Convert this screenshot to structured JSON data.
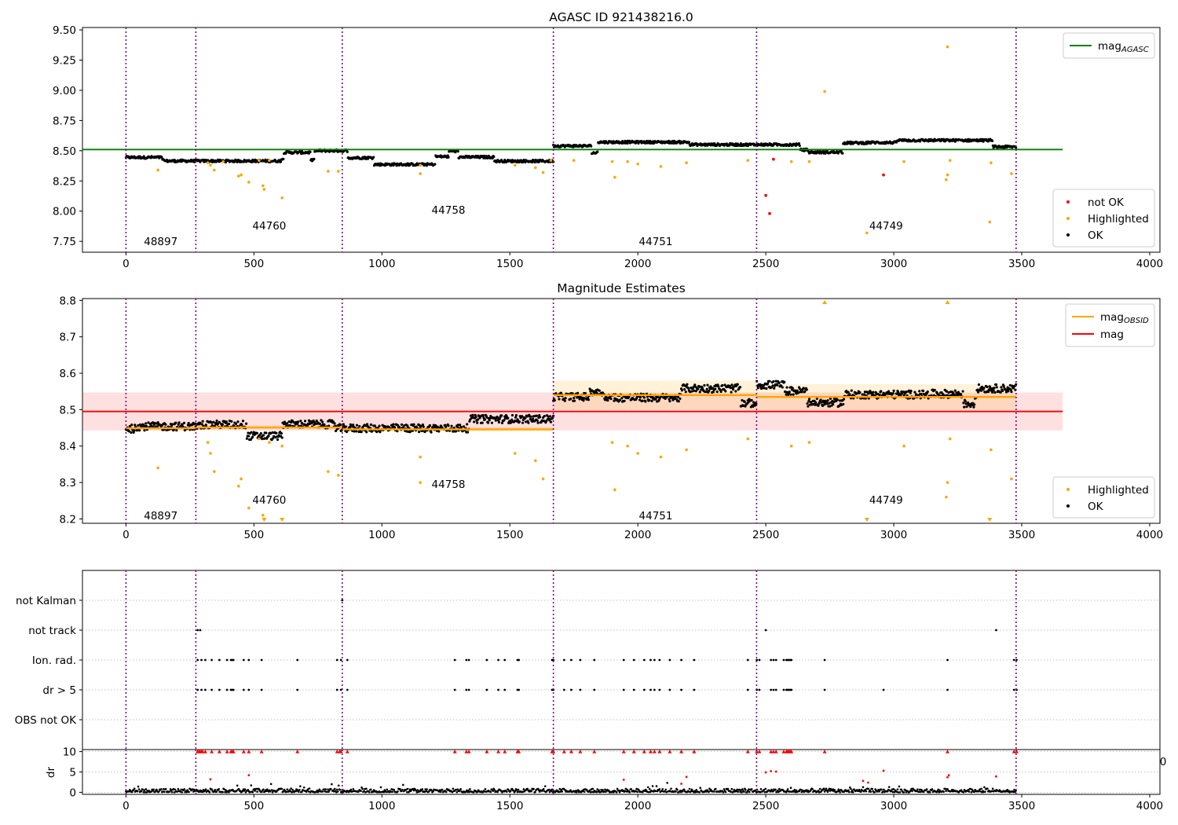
{
  "chart_data": [
    {
      "type": "scatter",
      "title": "AGASC ID 921438216.0",
      "xlim": [
        -170,
        4040
      ],
      "ylim": [
        7.66,
        9.52
      ],
      "xticks": [
        0,
        500,
        1000,
        1500,
        2000,
        2500,
        3000,
        3500,
        4000
      ],
      "xtick_labels": [
        "0",
        "500",
        "1000",
        "1500",
        "2000",
        "2500",
        "3000",
        "3500",
        "4000"
      ],
      "yticks": [
        7.75,
        8.0,
        8.25,
        8.5,
        8.75,
        9.0,
        9.25,
        9.5
      ],
      "ytick_labels": [
        "7.75",
        "8.00",
        "8.25",
        "8.50",
        "8.75",
        "9.00",
        "9.25",
        "9.50"
      ],
      "legend_upper": [
        {
          "label": "mag",
          "sub": "AGASC",
          "color": "#008000",
          "kind": "line"
        }
      ],
      "legend_lower": [
        {
          "label": "not OK",
          "color": "#ff0000",
          "kind": "dot"
        },
        {
          "label": "Highlighted",
          "color": "#ffa500",
          "kind": "dot"
        },
        {
          "label": "OK",
          "color": "#000000",
          "kind": "dot"
        }
      ],
      "obsid_boundaries": [
        0,
        273,
        845,
        1670,
        2464,
        3478
      ],
      "obsid_labels": [
        {
          "text": "48897",
          "x": 136,
          "y": 7.75
        },
        {
          "text": "44760",
          "x": 560,
          "y": 7.88
        },
        {
          "text": "44758",
          "x": 1260,
          "y": 8.01
        },
        {
          "text": "44751",
          "x": 2070,
          "y": 7.75
        },
        {
          "text": "44749",
          "x": 2970,
          "y": 7.88
        }
      ],
      "agasc_mag": 8.51,
      "hline_xrange": [
        -170,
        3660
      ],
      "ok_segments": [
        {
          "x": [
            0,
            1670
          ],
          "level": 8.445
        },
        {
          "x": [
            1670,
            3478
          ],
          "level": 8.54
        }
      ],
      "highlighted_points": [
        [
          125,
          8.34
        ],
        [
          320,
          8.4
        ],
        [
          330,
          8.38
        ],
        [
          345,
          8.34
        ],
        [
          380,
          8.41
        ],
        [
          440,
          8.29
        ],
        [
          450,
          8.3
        ],
        [
          480,
          8.24
        ],
        [
          520,
          8.42
        ],
        [
          535,
          8.21
        ],
        [
          540,
          8.18
        ],
        [
          560,
          8.42
        ],
        [
          610,
          8.11
        ],
        [
          790,
          8.33
        ],
        [
          830,
          8.33
        ],
        [
          1150,
          8.31
        ],
        [
          1150,
          8.38
        ],
        [
          1520,
          8.38
        ],
        [
          1600,
          8.36
        ],
        [
          1630,
          8.32
        ],
        [
          1660,
          8.42
        ],
        [
          1750,
          8.42
        ],
        [
          1900,
          8.41
        ],
        [
          1910,
          8.28
        ],
        [
          1960,
          8.41
        ],
        [
          2000,
          8.39
        ],
        [
          2090,
          8.37
        ],
        [
          2190,
          8.4
        ],
        [
          2430,
          8.42
        ],
        [
          2600,
          8.41
        ],
        [
          2670,
          8.41
        ],
        [
          2730,
          8.99
        ],
        [
          2895,
          7.82
        ],
        [
          3040,
          8.41
        ],
        [
          3205,
          8.26
        ],
        [
          3210,
          8.3
        ],
        [
          3210,
          9.36
        ],
        [
          3220,
          8.42
        ],
        [
          3375,
          7.91
        ],
        [
          3380,
          8.4
        ],
        [
          3460,
          8.31
        ]
      ],
      "not_ok_points": [
        [
          2500,
          8.13
        ],
        [
          2515,
          7.98
        ],
        [
          2530,
          8.43
        ],
        [
          2960,
          8.3
        ]
      ]
    },
    {
      "type": "scatter",
      "title": "Magnitude Estimates",
      "xlim": [
        -170,
        4040
      ],
      "ylim": [
        8.188,
        8.805
      ],
      "xticks": [
        0,
        500,
        1000,
        1500,
        2000,
        2500,
        3000,
        3500,
        4000
      ],
      "xtick_labels": [
        "0",
        "500",
        "1000",
        "1500",
        "2000",
        "2500",
        "3000",
        "3500",
        "4000"
      ],
      "yticks": [
        8.2,
        8.3,
        8.4,
        8.5,
        8.6,
        8.7,
        8.8
      ],
      "ytick_labels": [
        "8.2",
        "8.3",
        "8.4",
        "8.5",
        "8.6",
        "8.7",
        "8.8"
      ],
      "legend_upper": [
        {
          "label": "mag",
          "sub": "OBSID",
          "color": "#ffa500",
          "kind": "line"
        },
        {
          "label": "mag",
          "sub": "",
          "color": "#ff0000",
          "kind": "line"
        }
      ],
      "legend_lower": [
        {
          "label": "Highlighted",
          "color": "#ffa500",
          "kind": "dot"
        },
        {
          "label": "OK",
          "color": "#000000",
          "kind": "dot"
        }
      ],
      "mag": 8.495,
      "mag_band": [
        8.443,
        8.547
      ],
      "hline_xrange": [
        -170,
        3660
      ],
      "obsid_mags": [
        {
          "x": [
            0,
            273
          ],
          "mag": 8.449,
          "band": [
            8.443,
            8.455
          ]
        },
        {
          "x": [
            273,
            845
          ],
          "mag": 8.451,
          "band": [
            8.445,
            8.457
          ]
        },
        {
          "x": [
            845,
            1670
          ],
          "mag": 8.446,
          "band": [
            8.44,
            8.452
          ]
        },
        {
          "x": [
            1670,
            2464
          ],
          "mag": 8.54,
          "band": [
            8.5,
            8.58
          ]
        },
        {
          "x": [
            2464,
            3478
          ],
          "mag": 8.535,
          "band": [
            8.5,
            8.57
          ]
        }
      ],
      "obsid_boundaries": [
        0,
        273,
        845,
        1670,
        2464,
        3478
      ],
      "obsid_labels": [
        {
          "text": "48897",
          "x": 136,
          "y": 8.21
        },
        {
          "text": "44760",
          "x": 560,
          "y": 8.253
        },
        {
          "text": "44758",
          "x": 1260,
          "y": 8.296
        },
        {
          "text": "44751",
          "x": 2070,
          "y": 8.21
        },
        {
          "text": "44749",
          "x": 2970,
          "y": 8.253
        }
      ],
      "ok_segments": [
        {
          "x": [
            0,
            1670
          ],
          "level": 8.448
        },
        {
          "x": [
            1670,
            3478
          ],
          "level": 8.535
        }
      ],
      "highlighted_points": [
        [
          125,
          8.34
        ],
        [
          320,
          8.41
        ],
        [
          330,
          8.38
        ],
        [
          345,
          8.33
        ],
        [
          440,
          8.29
        ],
        [
          450,
          8.31
        ],
        [
          480,
          8.23
        ],
        [
          520,
          8.42
        ],
        [
          535,
          8.21
        ],
        [
          540,
          8.2
        ],
        [
          560,
          8.41
        ],
        [
          610,
          8.4
        ],
        [
          790,
          8.33
        ],
        [
          830,
          8.32
        ],
        [
          1150,
          8.3
        ],
        [
          1150,
          8.37
        ],
        [
          1520,
          8.38
        ],
        [
          1600,
          8.36
        ],
        [
          1630,
          8.31
        ],
        [
          1900,
          8.41
        ],
        [
          1910,
          8.28
        ],
        [
          1960,
          8.4
        ],
        [
          2000,
          8.38
        ],
        [
          2090,
          8.37
        ],
        [
          2190,
          8.39
        ],
        [
          2430,
          8.42
        ],
        [
          2600,
          8.4
        ],
        [
          2670,
          8.41
        ],
        [
          3040,
          8.4
        ],
        [
          3205,
          8.26
        ],
        [
          3210,
          8.3
        ],
        [
          3220,
          8.42
        ],
        [
          3380,
          8.39
        ],
        [
          3460,
          8.31
        ]
      ],
      "clipped_up": [
        2730,
        3210
      ],
      "clipped_down": [
        540,
        610,
        2895,
        3375
      ]
    },
    {
      "type": "scatter",
      "title": "",
      "xlim": [
        -170,
        4040
      ],
      "categories": [
        "not Kalman",
        "not track",
        "Ion. rad.",
        "dr > 5",
        "OBS not OK"
      ],
      "obsid_boundaries": [
        0,
        273,
        845,
        1670,
        2464,
        3478
      ],
      "flags": {
        "not Kalman": [
          845
        ],
        "not track": [
          280,
          290,
          2500,
          3400
        ],
        "Ion. rad.": [
          280,
          295,
          310,
          335,
          365,
          395,
          410,
          415,
          420,
          460,
          480,
          530,
          670,
          825,
          840,
          865,
          1285,
          1330,
          1340,
          1410,
          1455,
          1480,
          1530,
          1535,
          1665,
          1670,
          1712,
          1740,
          1775,
          1830,
          1945,
          1985,
          2025,
          2050,
          2065,
          2085,
          2125,
          2170,
          2220,
          2430,
          2465,
          2475,
          2520,
          2530,
          2540,
          2570,
          2580,
          2585,
          2590,
          2595,
          2600,
          2730,
          3210,
          3470,
          3480
        ],
        "dr > 5": [
          280,
          295,
          310,
          335,
          365,
          395,
          410,
          415,
          420,
          460,
          480,
          530,
          670,
          825,
          840,
          865,
          1285,
          1330,
          1340,
          1410,
          1455,
          1480,
          1530,
          1535,
          1665,
          1670,
          1712,
          1740,
          1775,
          1830,
          1945,
          1985,
          2025,
          2050,
          2065,
          2085,
          2125,
          2170,
          2220,
          2430,
          2465,
          2475,
          2520,
          2530,
          2540,
          2570,
          2580,
          2585,
          2590,
          2595,
          2600,
          2730,
          2960,
          3210,
          3470,
          3480
        ],
        "OBS not OK": []
      }
    },
    {
      "type": "scatter",
      "title": "",
      "ylabel": "dr",
      "xlim": [
        -170,
        4040
      ],
      "ylim": [
        -0.5,
        10.5
      ],
      "xticks": [
        0,
        500,
        1000,
        1500,
        2000,
        2500,
        3000,
        3500,
        4000
      ],
      "xtick_labels": [
        "0",
        "500",
        "1000",
        "1500",
        "2000",
        "2500",
        "3000",
        "3500",
        "4000"
      ],
      "yticks": [
        0,
        5,
        10
      ],
      "ytick_labels": [
        "0",
        "5",
        "10"
      ],
      "overlapped_label": "0",
      "obsid_boundaries": [
        0,
        273,
        845,
        1670,
        2464,
        3478
      ],
      "red_clipped_x": [
        280,
        285,
        290,
        295,
        300,
        310,
        335,
        365,
        395,
        410,
        415,
        420,
        460,
        480,
        530,
        670,
        825,
        835,
        840,
        865,
        1285,
        1330,
        1340,
        1410,
        1455,
        1480,
        1530,
        1535,
        1665,
        1670,
        1712,
        1740,
        1775,
        1830,
        1945,
        1985,
        2025,
        2050,
        2065,
        2085,
        2125,
        2170,
        2220,
        2430,
        2465,
        2475,
        2520,
        2530,
        2540,
        2570,
        2580,
        2585,
        2590,
        2595,
        2600,
        2730,
        3210,
        3470,
        3480
      ],
      "red_points": [
        [
          330,
          3.2
        ],
        [
          480,
          4.2
        ],
        [
          1945,
          3.1
        ],
        [
          2170,
          2.1
        ],
        [
          2190,
          3.8
        ],
        [
          2500,
          4.9
        ],
        [
          2520,
          5.2
        ],
        [
          2540,
          5.1
        ],
        [
          2880,
          2.8
        ],
        [
          2900,
          2.4
        ],
        [
          2960,
          5.3
        ],
        [
          3210,
          3.7
        ],
        [
          3215,
          4.2
        ],
        [
          3400,
          3.9
        ]
      ]
    }
  ]
}
